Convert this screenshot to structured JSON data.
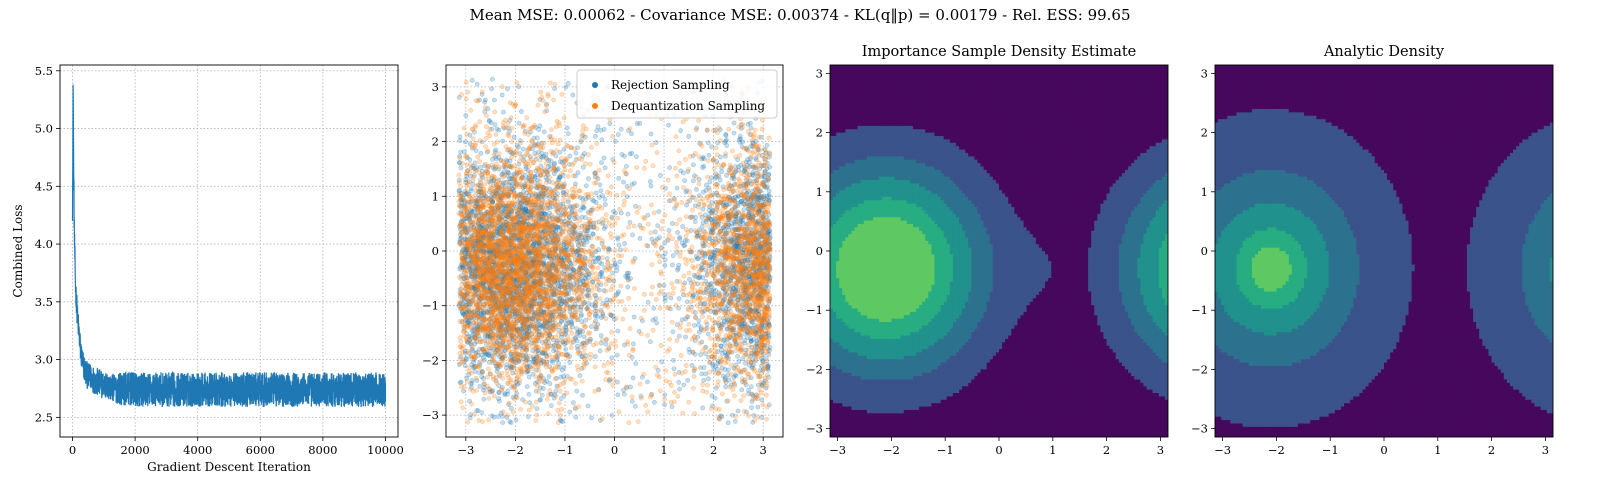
{
  "figure": {
    "suptitle": "Mean MSE: 0.00062 - Covariance MSE: 0.00374 - KL(q‖p) = 0.00179 - Rel. ESS: 99.65"
  },
  "chart_data": [
    {
      "type": "line",
      "title": "",
      "xlabel": "Gradient Descent Iteration",
      "ylabel": "Combined Loss",
      "xlim": [
        -400,
        10400
      ],
      "ylim": [
        2.33,
        5.55
      ],
      "xticks": [
        0,
        2000,
        4000,
        6000,
        8000,
        10000
      ],
      "xtick_labels": [
        "0",
        "2000",
        "4000",
        "6000",
        "8000",
        "10000"
      ],
      "yticks": [
        2.5,
        3.0,
        3.5,
        4.0,
        4.5,
        5.0,
        5.5
      ],
      "ytick_labels": [
        "2.5",
        "3.0",
        "3.5",
        "4.0",
        "4.5",
        "5.0",
        "5.5"
      ],
      "grid": true,
      "color": "#1f77b4",
      "series": [
        {
          "x": [
            0,
            20,
            40,
            60,
            80,
            100,
            130,
            160,
            200,
            250,
            300,
            350,
            400,
            500,
            600,
            700,
            800,
            1000,
            1200,
            1400,
            1600,
            2000,
            3000,
            4000,
            5000,
            6000,
            7000,
            8000,
            9000,
            10000
          ],
          "y": [
            4.2,
            5.38,
            4.6,
            4.05,
            3.8,
            3.6,
            3.5,
            3.35,
            3.25,
            3.1,
            3.0,
            2.95,
            2.9,
            2.85,
            2.85,
            2.82,
            2.8,
            2.78,
            2.76,
            2.75,
            2.75,
            2.74,
            2.74,
            2.74,
            2.74,
            2.74,
            2.74,
            2.74,
            2.74,
            2.74
          ],
          "noise_amplitude": [
            0.0,
            0.0,
            0.15,
            0.15,
            0.15,
            0.12,
            0.12,
            0.12,
            0.12,
            0.12,
            0.12,
            0.12,
            0.12,
            0.12,
            0.12,
            0.12,
            0.13,
            0.12,
            0.12,
            0.13,
            0.15,
            0.15,
            0.15,
            0.15,
            0.15,
            0.15,
            0.15,
            0.15,
            0.15,
            0.15
          ]
        }
      ]
    },
    {
      "type": "scatter",
      "title": "",
      "xlim": [
        -3.4,
        3.4
      ],
      "ylim": [
        -3.4,
        3.4
      ],
      "xticks": [
        -3,
        -2,
        -1,
        0,
        1,
        2,
        3
      ],
      "xtick_labels": [
        "−3",
        "−2",
        "−1",
        "0",
        "1",
        "2",
        "3"
      ],
      "yticks": [
        -3,
        -2,
        -1,
        0,
        1,
        2,
        3
      ],
      "ytick_labels": [
        "−3",
        "−2",
        "−1",
        "0",
        "1",
        "2",
        "3"
      ],
      "grid": true,
      "legend": "top-right",
      "series": [
        {
          "name": "Rejection Sampling",
          "color": "#1f77b4",
          "alpha": 0.25,
          "n_points": 4500,
          "mixture": [
            {
              "cx": -2.1,
              "cy": -0.3,
              "sx": 0.9,
              "sy": 1.05,
              "weight": 0.62
            },
            {
              "cx": 3.0,
              "cy": -0.3,
              "sx": 0.7,
              "sy": 1.1,
              "weight": 0.28
            },
            {
              "uniform": true,
              "weight": 0.1
            }
          ]
        },
        {
          "name": "Dequantization Sampling",
          "color": "#ff7f0e",
          "alpha": 0.25,
          "n_points": 4500,
          "mixture": [
            {
              "cx": -2.1,
              "cy": -0.3,
              "sx": 0.9,
              "sy": 1.05,
              "weight": 0.64
            },
            {
              "cx": 3.0,
              "cy": -0.3,
              "sx": 0.7,
              "sy": 1.1,
              "weight": 0.26
            },
            {
              "uniform": true,
              "weight": 0.1
            }
          ]
        }
      ]
    },
    {
      "type": "heatmap",
      "title": "Importance Sample Density Estimate",
      "xlim": [
        -3.1416,
        3.1416
      ],
      "ylim": [
        -3.1416,
        3.1416
      ],
      "xticks": [
        -3,
        -2,
        -1,
        0,
        1,
        2,
        3
      ],
      "xtick_labels": [
        "−3",
        "−2",
        "−1",
        "0",
        "1",
        "2",
        "3"
      ],
      "yticks": [
        -3,
        -2,
        -1,
        0,
        1,
        2,
        3
      ],
      "ytick_labels": [
        "−3",
        "−2",
        "−1",
        "0",
        "1",
        "2",
        "3"
      ],
      "mode_center": [
        -2.1,
        -0.3
      ],
      "levels": [
        0.0,
        0.1,
        0.3,
        0.5,
        0.7,
        0.85,
        1.0
      ],
      "colors": [
        "#46085c",
        "#3b528b",
        "#2c728e",
        "#21918c",
        "#27ad81",
        "#5ec962",
        "#cde11d"
      ]
    },
    {
      "type": "heatmap",
      "title": "Analytic Density",
      "xlim": [
        -3.1416,
        3.1416
      ],
      "ylim": [
        -3.1416,
        3.1416
      ],
      "xticks": [
        -3,
        -2,
        -1,
        0,
        1,
        2,
        3
      ],
      "xtick_labels": [
        "−3",
        "−2",
        "−1",
        "0",
        "1",
        "2",
        "3"
      ],
      "yticks": [
        -3,
        -2,
        -1,
        0,
        1,
        2,
        3
      ],
      "ytick_labels": [
        "−3",
        "−2",
        "−1",
        "0",
        "1",
        "2",
        "3"
      ],
      "mode_center": [
        -2.1,
        -0.3
      ],
      "levels": [
        0.0,
        0.1,
        0.3,
        0.5,
        0.7,
        0.85,
        1.0
      ],
      "colors": [
        "#46085c",
        "#3b528b",
        "#2c728e",
        "#21918c",
        "#27ad81",
        "#5ec962",
        "#cde11d"
      ]
    }
  ]
}
